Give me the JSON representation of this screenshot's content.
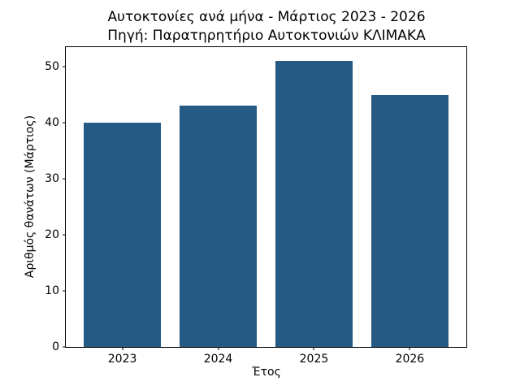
{
  "figure": {
    "background": "#ffffff",
    "text_color": "#000000",
    "spine_color": "#000000"
  },
  "chart_data": {
    "type": "bar",
    "title": "Αυτοκτονίες ανά μήνα - Μάρτιος 2023 - 2026",
    "subtitle": "Πηγή: Παρατηρητήριο Αυτοκτονιών ΚΛΙΜΑΚΑ",
    "categories": [
      "2023",
      "2024",
      "2025",
      "2026"
    ],
    "values": [
      40,
      43,
      51,
      45
    ],
    "xlabel": "Έτος",
    "ylabel": "Αριθμός θανάτων (Μάρτιος)",
    "yticks": [
      0,
      10,
      20,
      30,
      40,
      50
    ],
    "ylim": [
      0,
      53.5
    ],
    "xlim": [
      -0.59,
      3.59
    ],
    "bar_width": 0.8,
    "bar_color": "#245a84",
    "grid": false,
    "legend_position": "none"
  }
}
